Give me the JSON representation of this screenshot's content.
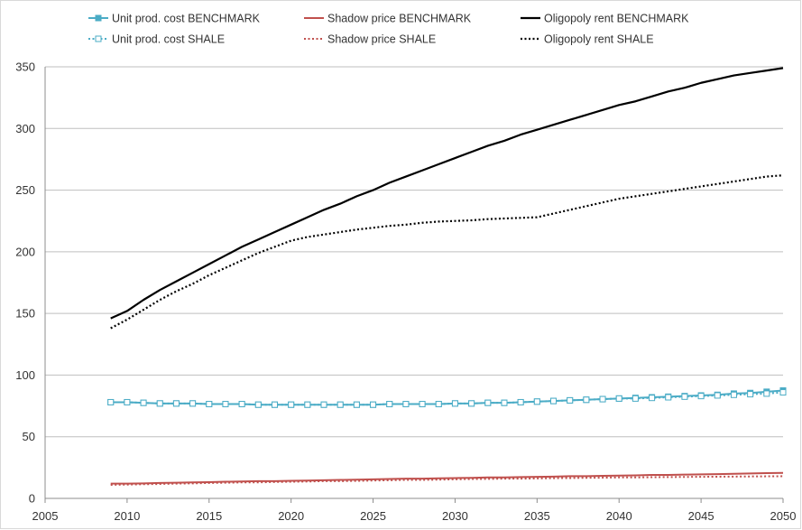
{
  "chart_data": {
    "type": "line",
    "title": "",
    "xlabel": "",
    "ylabel": "",
    "xlim": [
      2005,
      2050
    ],
    "ylim": [
      0,
      350
    ],
    "x_ticks": [
      2005,
      2010,
      2015,
      2020,
      2025,
      2030,
      2035,
      2040,
      2045,
      2050
    ],
    "y_ticks": [
      0,
      50,
      100,
      150,
      200,
      250,
      300,
      350
    ],
    "grid": "horizontal",
    "legend_position": "top",
    "x": [
      2009,
      2010,
      2011,
      2012,
      2013,
      2014,
      2015,
      2016,
      2017,
      2018,
      2019,
      2020,
      2021,
      2022,
      2023,
      2024,
      2025,
      2026,
      2027,
      2028,
      2029,
      2030,
      2031,
      2032,
      2033,
      2034,
      2035,
      2036,
      2037,
      2038,
      2039,
      2040,
      2041,
      2042,
      2043,
      2044,
      2045,
      2046,
      2047,
      2048,
      2049,
      2050
    ],
    "series": [
      {
        "name": "Unit prod. cost BENCHMARK",
        "color": "#4bacc6",
        "style": "solid",
        "marker": "filled-square",
        "values": [
          78,
          78,
          77.5,
          77,
          77,
          77,
          76.5,
          76.5,
          76.5,
          76,
          76,
          76,
          76,
          76,
          76,
          76,
          76,
          76.5,
          76.5,
          76.5,
          76.5,
          77,
          77,
          77.5,
          77.5,
          78,
          78.5,
          79,
          79.5,
          80,
          80.5,
          81,
          81.5,
          82,
          82.5,
          83,
          83.5,
          84,
          85,
          85.5,
          86.5,
          87.5
        ]
      },
      {
        "name": "Shadow price BENCHMARK",
        "color": "#c0504d",
        "style": "solid",
        "marker": "none",
        "values": [
          12,
          12,
          12.2,
          12.5,
          12.7,
          13,
          13.2,
          13.5,
          13.7,
          14,
          14,
          14.3,
          14.5,
          14.7,
          15,
          15.2,
          15.5,
          15.7,
          16,
          16,
          16.3,
          16.5,
          16.7,
          17,
          17,
          17.3,
          17.5,
          17.7,
          18,
          18,
          18.3,
          18.5,
          18.7,
          19,
          19,
          19.3,
          19.5,
          19.7,
          20,
          20.2,
          20.5,
          20.7
        ]
      },
      {
        "name": "Oligopoly rent BENCHMARK",
        "color": "#000000",
        "style": "solid",
        "marker": "none",
        "values": [
          146,
          152,
          161,
          169,
          176,
          183,
          190,
          197,
          204,
          210,
          216,
          222,
          228,
          234,
          239,
          245,
          250,
          256,
          261,
          266,
          271,
          276,
          281,
          286,
          290,
          295,
          299,
          303,
          307,
          311,
          315,
          319,
          322,
          326,
          330,
          333,
          337,
          340,
          343,
          345,
          347,
          349
        ]
      },
      {
        "name": "Unit prod. cost SHALE",
        "color": "#4bacc6",
        "style": "dotted",
        "marker": "hollow-square",
        "values": [
          78,
          78,
          77.5,
          77,
          77,
          77,
          76.5,
          76.5,
          76.5,
          76,
          76,
          76,
          76,
          76,
          76,
          76,
          76,
          76.5,
          76.5,
          76.5,
          76.5,
          77,
          77,
          77.5,
          77.5,
          78,
          78.5,
          79,
          79.5,
          80,
          80.5,
          81,
          81,
          81.5,
          82,
          82.5,
          83,
          83.5,
          84,
          84.5,
          85,
          86
        ]
      },
      {
        "name": "Shadow price SHALE",
        "color": "#c0504d",
        "style": "dotted",
        "marker": "none",
        "values": [
          11,
          11.2,
          11.5,
          11.7,
          12,
          12.2,
          12.5,
          12.7,
          13,
          13,
          13.3,
          13.5,
          13.7,
          14,
          14,
          14.2,
          14.5,
          14.7,
          15,
          15,
          15.2,
          15.5,
          15.7,
          15.8,
          16,
          16,
          16.2,
          16.4,
          16.5,
          16.7,
          16.8,
          17,
          17,
          17.2,
          17.3,
          17.4,
          17.5,
          17.6,
          17.7,
          17.8,
          17.9,
          18
        ]
      },
      {
        "name": "Oligopoly rent SHALE",
        "color": "#000000",
        "style": "dotted",
        "marker": "none",
        "values": [
          138,
          145,
          153,
          161,
          168,
          174,
          181,
          187,
          193,
          199,
          204,
          209,
          212,
          214,
          216,
          218,
          219.5,
          221,
          222,
          223.5,
          224.5,
          225,
          225.5,
          226.5,
          227,
          227.5,
          228,
          231,
          234,
          237,
          240,
          243,
          245,
          247,
          249,
          251,
          253,
          255,
          257,
          259,
          261,
          262
        ]
      }
    ]
  }
}
